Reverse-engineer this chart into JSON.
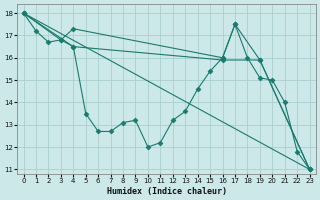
{
  "xlabel": "Humidex (Indice chaleur)",
  "bg_color": "#cce8e8",
  "grid_color": "#aacfcf",
  "line_color": "#1a7a6e",
  "xlim_min": -0.5,
  "xlim_max": 23.5,
  "ylim_min": 10.8,
  "ylim_max": 18.4,
  "yticks": [
    11,
    12,
    13,
    14,
    15,
    16,
    17,
    18
  ],
  "xticks": [
    0,
    1,
    2,
    3,
    4,
    5,
    6,
    7,
    8,
    9,
    10,
    11,
    12,
    13,
    14,
    15,
    16,
    17,
    18,
    19,
    20,
    21,
    22,
    23
  ],
  "line_main": {
    "x": [
      0,
      1,
      2,
      3,
      4,
      5,
      6,
      7,
      8,
      9,
      10,
      11,
      12,
      13,
      14,
      15,
      16,
      17,
      18,
      19,
      20,
      21,
      22,
      23
    ],
    "y": [
      18.0,
      17.2,
      16.7,
      16.8,
      16.5,
      13.5,
      12.7,
      12.7,
      13.1,
      13.2,
      12.0,
      12.2,
      13.2,
      13.6,
      14.6,
      15.4,
      16.0,
      17.5,
      16.0,
      15.1,
      15.0,
      14.0,
      11.8,
      11.0
    ]
  },
  "line_A": {
    "comment": "from x=0,y=18 through x=3,y=16.8 to x=4,y=17.3 then to x=16,y=16.0 then x=17,y=17.5 then x=19,y=15.9 then x=23,y=11",
    "x": [
      0,
      3,
      4,
      16,
      17,
      19,
      23
    ],
    "y": [
      18.0,
      16.8,
      17.3,
      16.0,
      17.5,
      15.9,
      11.0
    ]
  },
  "line_B": {
    "x": [
      0,
      4,
      16,
      19,
      23
    ],
    "y": [
      18.0,
      16.5,
      15.9,
      15.9,
      11.0
    ]
  },
  "line_C": {
    "x": [
      0,
      23
    ],
    "y": [
      18.0,
      11.0
    ]
  }
}
